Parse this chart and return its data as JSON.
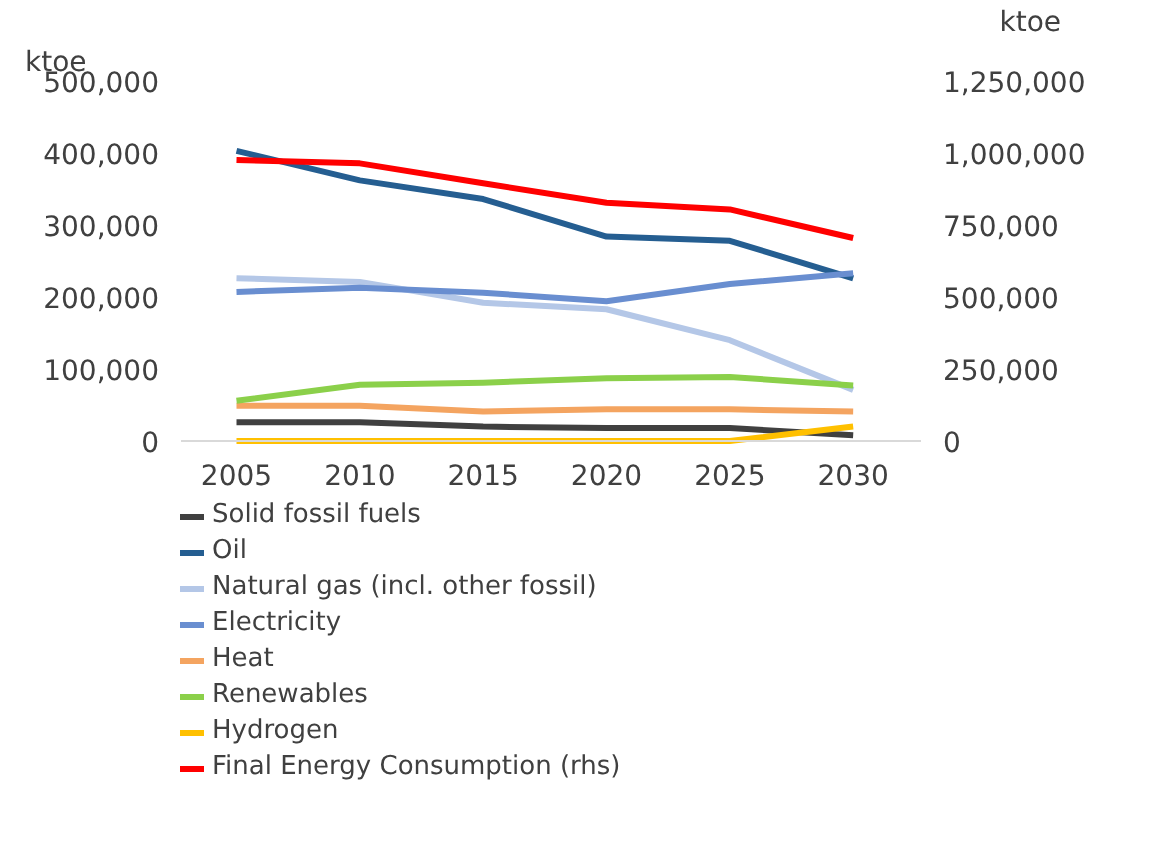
{
  "chart_data": {
    "type": "line",
    "categories": [
      "2005",
      "2010",
      "2015",
      "2020",
      "2025",
      "2030"
    ],
    "ylabel": "ktoe",
    "y2label": "ktoe",
    "ylim": [
      0,
      500000
    ],
    "yticks": [
      {
        "value": 0,
        "label": "0"
      },
      {
        "value": 100000,
        "label": "100,000"
      },
      {
        "value": 200000,
        "label": "200,000"
      },
      {
        "value": 300000,
        "label": "300,000"
      },
      {
        "value": 400000,
        "label": "400,000"
      },
      {
        "value": 500000,
        "label": "500,000"
      }
    ],
    "y2lim": [
      0,
      1250000
    ],
    "y2ticks": [
      {
        "value": 0,
        "label": "0"
      },
      {
        "value": 250000,
        "label": "250,000"
      },
      {
        "value": 500000,
        "label": "500,000"
      },
      {
        "value": 750000,
        "label": "750,000"
      },
      {
        "value": 1000000,
        "label": "1,000,000"
      },
      {
        "value": 1250000,
        "label": "1,250,000"
      }
    ],
    "grid": false,
    "legend": "bottom",
    "marker": "none",
    "line_style": "solid",
    "series": [
      {
        "name": "Solid fossil fuels",
        "color": "#404040",
        "values": [
          26000,
          26000,
          20000,
          18000,
          18000,
          8000
        ]
      },
      {
        "name": "Oil",
        "color": "#255e91",
        "values": [
          403000,
          362000,
          336000,
          284000,
          278000,
          226000
        ]
      },
      {
        "name": "Natural gas (incl. other fossil)",
        "color": "#b4c7e7",
        "values": [
          226000,
          221000,
          192000,
          183000,
          140000,
          71000
        ]
      },
      {
        "name": "Electricity",
        "color": "#698ed0",
        "values": [
          207000,
          213000,
          206000,
          194000,
          218000,
          233000
        ]
      },
      {
        "name": "Heat",
        "color": "#f4a460",
        "values": [
          49000,
          49000,
          41000,
          44000,
          44000,
          41000
        ]
      },
      {
        "name": "Renewables",
        "color": "#8bd04a",
        "values": [
          56000,
          78000,
          81000,
          87000,
          89000,
          77000
        ]
      },
      {
        "name": "Hydrogen",
        "color": "#ffc000",
        "values": [
          0,
          0,
          0,
          0,
          0,
          20000
        ]
      },
      {
        "name": "Final Energy Consumption (rhs)",
        "color": "#ff0000",
        "axis": "y2",
        "values": [
          976000,
          964000,
          895000,
          827000,
          804000,
          705000
        ]
      }
    ]
  }
}
